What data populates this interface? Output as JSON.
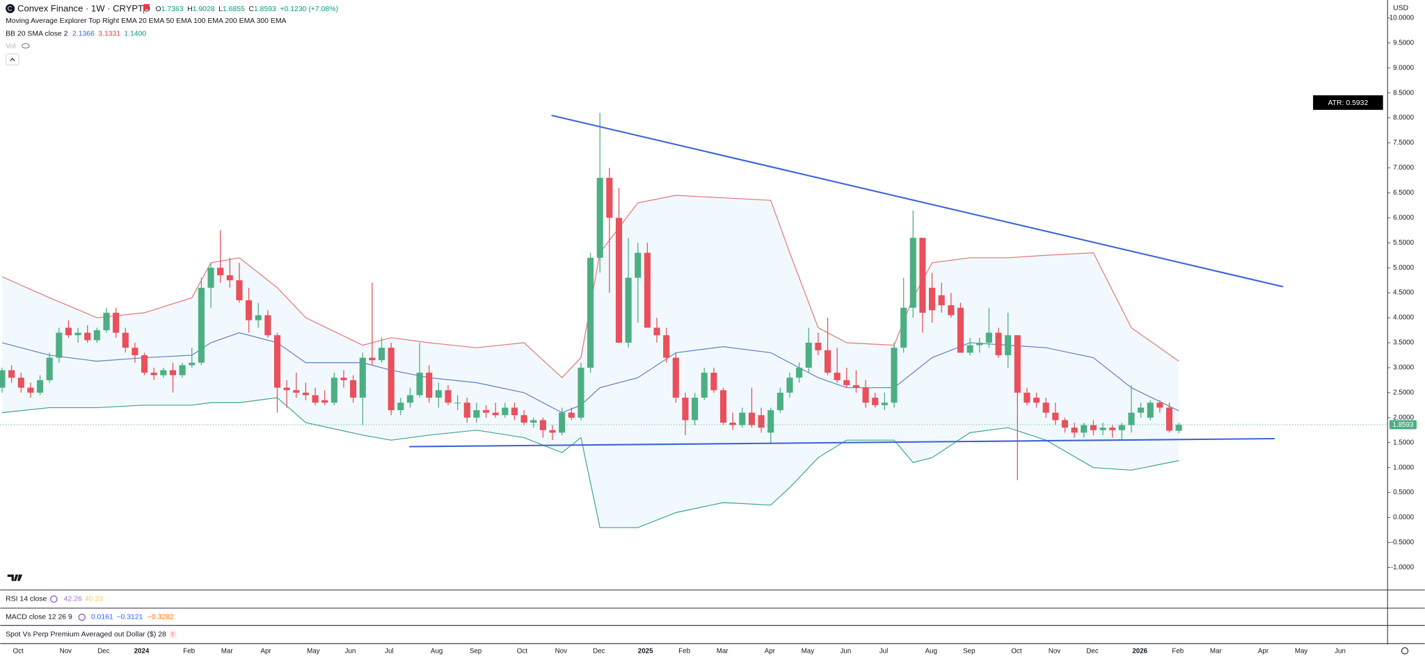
{
  "header": {
    "symbol": "Convex Finance · 1W · CRYPTO",
    "ohlc": [
      {
        "key": "O",
        "value": "1.7363"
      },
      {
        "key": "H",
        "value": "1.9028"
      },
      {
        "key": "L",
        "value": "1.6855"
      },
      {
        "key": "C",
        "value": "1.8593"
      }
    ],
    "change": "+0.1230 (+7.08%)",
    "ma_indicator": "Moving Average Explorer Top Right EMA 20 EMA 50 EMA 100 EMA 200 EMA 300 EMA",
    "bb_indicator": "BB 20 SMA close 2",
    "bb_values": [
      "2.1366",
      "3.1331",
      "1.1400"
    ],
    "vol": "Vol",
    "currency": "USD"
  },
  "panes": {
    "rsi": {
      "label": "RSI 14 close",
      "values": [
        "42.26",
        "40.33"
      ]
    },
    "macd": {
      "label": "MACD close 12 26 9",
      "values": [
        "0.0161",
        "−0.3121",
        "−0.3282"
      ]
    },
    "spot": {
      "label": "Spot Vs Perp Premium Averaged out Dollar ($) 28"
    }
  },
  "chart_data": {
    "type": "candlestick",
    "up_color": "#4caf83",
    "down_color": "#e8505b",
    "candles": {
      "open": [
        2.6,
        2.95,
        2.8,
        2.6,
        2.5,
        2.75,
        3.2,
        3.8,
        3.65,
        3.7,
        3.55,
        3.75,
        4.1,
        3.7,
        3.4,
        3.25,
        2.9,
        2.85,
        2.95,
        2.85,
        3.05,
        3.1,
        4.6,
        5.0,
        4.85,
        4.75,
        4.35,
        3.95,
        4.05,
        3.65,
        2.6,
        2.55,
        2.5,
        2.45,
        2.35,
        2.3,
        2.8,
        2.75,
        2.4,
        3.2,
        3.15,
        3.4,
        2.15,
        2.3,
        2.45,
        2.9,
        2.4,
        2.55,
        2.3,
        2.3,
        2.0,
        2.15,
        2.1,
        2.05,
        2.2,
        2.05,
        1.9,
        1.95,
        1.75,
        1.7,
        2.1,
        2.0,
        3.0,
        5.2,
        6.8,
        6.0,
        3.5,
        4.8,
        5.3,
        3.8,
        3.65,
        3.2,
        2.4,
        1.95,
        2.4,
        2.9,
        2.55,
        1.9,
        1.85,
        2.1,
        2.05,
        1.7,
        2.15,
        2.5,
        2.8,
        3.0,
        3.5,
        3.35,
        2.9,
        2.75,
        2.65,
        2.6,
        2.4,
        2.25,
        2.3,
        3.4,
        4.2,
        5.6,
        4.6,
        4.45,
        4.25,
        4.2,
        3.3,
        3.45,
        3.5,
        3.7,
        3.25,
        3.65,
        2.5,
        2.4,
        2.3,
        2.1,
        1.95,
        1.8,
        1.7,
        1.85,
        1.75,
        1.8,
        1.75,
        1.85,
        2.1,
        2.0,
        2.3,
        2.2,
        1.7363
      ],
      "high": [
        3.0,
        3.05,
        2.9,
        2.7,
        2.85,
        3.3,
        3.8,
        3.95,
        3.8,
        3.85,
        3.8,
        4.2,
        4.2,
        3.8,
        3.5,
        3.3,
        3.0,
        3.0,
        3.1,
        3.1,
        3.4,
        4.8,
        5.1,
        5.75,
        5.2,
        5.1,
        4.6,
        4.3,
        4.15,
        3.7,
        2.75,
        2.9,
        2.7,
        2.6,
        2.55,
        2.9,
        2.95,
        2.85,
        3.3,
        4.7,
        3.6,
        3.5,
        2.4,
        2.6,
        3.5,
        3.05,
        2.7,
        2.65,
        2.45,
        2.4,
        2.3,
        2.25,
        2.3,
        2.3,
        2.3,
        2.15,
        2.0,
        2.0,
        1.85,
        2.2,
        2.2,
        3.1,
        5.3,
        8.1,
        7.0,
        6.6,
        5.6,
        5.5,
        5.5,
        4.0,
        3.8,
        3.3,
        2.5,
        2.5,
        3.0,
        3.0,
        2.6,
        2.1,
        2.2,
        2.6,
        2.2,
        2.2,
        2.6,
        2.9,
        3.1,
        3.8,
        3.7,
        4.0,
        3.4,
        3.0,
        2.95,
        2.75,
        2.5,
        2.5,
        3.5,
        4.8,
        6.15,
        5.6,
        4.9,
        4.7,
        4.5,
        4.3,
        3.6,
        3.6,
        4.2,
        3.8,
        4.1,
        3.65,
        2.6,
        2.5,
        2.4,
        2.3,
        2.0,
        1.9,
        1.9,
        1.95,
        1.9,
        1.85,
        1.9,
        2.65,
        2.3,
        2.35,
        2.35,
        2.3,
        1.9028
      ],
      "low": [
        2.5,
        2.7,
        2.5,
        2.4,
        2.45,
        2.7,
        3.1,
        3.6,
        3.5,
        3.5,
        3.5,
        3.7,
        3.6,
        3.3,
        3.1,
        2.85,
        2.75,
        2.8,
        2.5,
        2.8,
        3.0,
        3.05,
        4.2,
        4.7,
        4.6,
        4.3,
        3.7,
        3.8,
        3.6,
        2.1,
        2.2,
        2.4,
        2.35,
        2.25,
        2.25,
        2.25,
        2.6,
        2.3,
        1.85,
        3.05,
        3.1,
        2.05,
        2.05,
        2.2,
        2.4,
        2.3,
        2.2,
        2.25,
        2.15,
        1.9,
        1.9,
        2.0,
        2.0,
        2.0,
        1.95,
        1.85,
        1.8,
        1.6,
        1.55,
        1.65,
        1.95,
        1.95,
        2.9,
        4.9,
        4.5,
        3.5,
        3.4,
        3.9,
        3.8,
        3.5,
        3.1,
        2.3,
        1.65,
        1.85,
        2.35,
        2.5,
        1.85,
        1.75,
        1.8,
        1.8,
        1.7,
        1.5,
        2.1,
        2.4,
        2.7,
        2.9,
        3.25,
        2.85,
        2.7,
        2.6,
        2.5,
        2.2,
        2.2,
        2.15,
        2.2,
        3.3,
        4.0,
        3.7,
        3.9,
        4.1,
        4.0,
        3.3,
        3.25,
        3.3,
        3.4,
        3.2,
        3.0,
        0.75,
        2.25,
        2.2,
        2.0,
        1.85,
        1.7,
        1.6,
        1.6,
        1.65,
        1.65,
        1.6,
        1.55,
        1.7,
        2.0,
        1.95,
        2.1,
        1.7,
        1.6855
      ],
      "close": [
        2.95,
        2.8,
        2.6,
        2.5,
        2.75,
        3.2,
        3.7,
        3.65,
        3.7,
        3.55,
        3.75,
        4.1,
        3.7,
        3.4,
        3.25,
        2.9,
        2.85,
        2.95,
        2.85,
        3.05,
        3.1,
        4.6,
        5.0,
        4.85,
        4.75,
        4.35,
        3.95,
        4.05,
        3.65,
        2.6,
        2.55,
        2.5,
        2.45,
        2.3,
        2.3,
        2.8,
        2.75,
        2.4,
        3.2,
        3.15,
        3.4,
        2.15,
        2.3,
        2.45,
        2.9,
        2.4,
        2.55,
        2.3,
        2.3,
        2.0,
        2.15,
        2.1,
        2.05,
        2.2,
        2.05,
        1.9,
        1.95,
        1.75,
        1.7,
        2.1,
        2.0,
        3.0,
        5.2,
        6.8,
        6.0,
        3.5,
        4.8,
        5.3,
        3.8,
        3.65,
        3.2,
        2.4,
        1.95,
        2.4,
        2.9,
        2.55,
        1.9,
        1.85,
        2.1,
        1.85,
        1.8,
        2.15,
        2.5,
        2.8,
        3.0,
        3.5,
        3.35,
        2.9,
        2.75,
        2.65,
        2.6,
        2.3,
        2.25,
        2.3,
        3.4,
        4.2,
        5.6,
        4.1,
        4.15,
        4.25,
        4.05,
        3.3,
        3.45,
        3.5,
        3.7,
        3.25,
        3.65,
        2.5,
        2.3,
        2.3,
        2.1,
        1.95,
        1.8,
        1.7,
        1.85,
        1.75,
        1.8,
        1.75,
        1.85,
        2.1,
        2.2,
        2.3,
        2.2,
        1.74,
        1.8593
      ]
    },
    "bands": {
      "x": [
        0,
        5,
        10,
        15,
        20,
        22,
        25,
        29,
        32,
        38,
        41,
        45,
        50,
        55,
        59,
        61,
        63,
        67,
        71,
        76,
        81,
        83,
        86,
        89,
        94,
        96,
        98,
        102,
        106,
        110,
        115,
        119,
        124
      ],
      "upper": {
        "color": "#e57373",
        "values": [
          4.82,
          4.4,
          4.0,
          4.1,
          4.4,
          5.1,
          5.2,
          4.6,
          4.0,
          3.45,
          3.6,
          3.5,
          3.4,
          3.5,
          2.8,
          3.2,
          5.3,
          6.3,
          6.45,
          6.4,
          6.35,
          5.3,
          3.8,
          3.5,
          3.45,
          4.4,
          5.1,
          5.2,
          5.2,
          5.25,
          5.3,
          3.8,
          3.13
        ]
      },
      "basis": {
        "color": "#5b7fbf",
        "values": [
          3.5,
          3.25,
          3.13,
          3.2,
          3.25,
          3.5,
          3.7,
          3.5,
          3.1,
          3.1,
          2.95,
          2.8,
          2.7,
          2.5,
          2.1,
          2.25,
          2.6,
          2.8,
          3.3,
          3.42,
          3.3,
          3.1,
          2.8,
          2.6,
          2.6,
          2.9,
          3.2,
          3.5,
          3.45,
          3.4,
          3.2,
          2.6,
          2.1366
        ]
      },
      "lower": {
        "color": "#3aa38a",
        "values": [
          2.1,
          2.2,
          2.2,
          2.25,
          2.25,
          2.3,
          2.3,
          2.4,
          1.9,
          1.65,
          1.55,
          1.65,
          1.75,
          1.6,
          1.3,
          1.6,
          -0.2,
          -0.2,
          0.1,
          0.3,
          0.25,
          0.6,
          1.2,
          1.55,
          1.55,
          1.1,
          1.2,
          1.7,
          1.8,
          1.55,
          1.0,
          0.95,
          1.14
        ]
      },
      "fill": "#2196f3"
    },
    "trendlines": [
      {
        "x": [
          57.9,
          135.0
        ],
        "values": [
          8.05,
          4.62
        ],
        "color": "#3b63d6"
      },
      {
        "x": [
          42.9,
          134.1
        ],
        "values": [
          1.42,
          1.58
        ],
        "color": "#3b63d6"
      }
    ],
    "last_price": 1.8593,
    "annotation": "ATR: 0.5932",
    "xlim": [
      -0.2,
      146
    ],
    "ylim": [
      -1.45,
      10.36
    ],
    "xticks": [
      {
        "value": 1.7,
        "label": "Oct"
      },
      {
        "value": 6.7,
        "label": "Nov"
      },
      {
        "value": 10.7,
        "label": "Dec"
      },
      {
        "value": 14.7,
        "label": "2024"
      },
      {
        "value": 19.7,
        "label": "Feb"
      },
      {
        "value": 23.7,
        "label": "Mar"
      },
      {
        "value": 27.8,
        "label": "Apr"
      },
      {
        "value": 32.8,
        "label": "May"
      },
      {
        "value": 36.7,
        "label": "Jun"
      },
      {
        "value": 40.8,
        "label": "Jul"
      },
      {
        "value": 45.8,
        "label": "Aug"
      },
      {
        "value": 49.9,
        "label": "Sep"
      },
      {
        "value": 54.8,
        "label": "Oct"
      },
      {
        "value": 58.9,
        "label": "Nov"
      },
      {
        "value": 62.9,
        "label": "Dec"
      },
      {
        "value": 67.8,
        "label": "2025"
      },
      {
        "value": 71.9,
        "label": "Feb"
      },
      {
        "value": 75.9,
        "label": "Mar"
      },
      {
        "value": 80.9,
        "label": "Apr"
      },
      {
        "value": 84.9,
        "label": "May"
      },
      {
        "value": 88.9,
        "label": "Jun"
      },
      {
        "value": 92.9,
        "label": "Jul"
      },
      {
        "value": 97.9,
        "label": "Aug"
      },
      {
        "value": 101.9,
        "label": "Sep"
      },
      {
        "value": 106.9,
        "label": "Oct"
      },
      {
        "value": 110.9,
        "label": "Nov"
      },
      {
        "value": 114.9,
        "label": "Dec"
      },
      {
        "value": 119.9,
        "label": "2026"
      },
      {
        "value": 123.9,
        "label": "Feb"
      },
      {
        "value": 127.9,
        "label": "Mar"
      },
      {
        "value": 132.9,
        "label": "Apr"
      },
      {
        "value": 136.9,
        "label": "May"
      },
      {
        "value": 141.0,
        "label": "Jun"
      }
    ],
    "yticks": [
      {
        "value": 10,
        "label": "10.0000"
      },
      {
        "value": 9.5,
        "label": "9.5000"
      },
      {
        "value": 9,
        "label": "9.0000"
      },
      {
        "value": 8.5,
        "label": "8.5000"
      },
      {
        "value": 8,
        "label": "8.0000"
      },
      {
        "value": 7.5,
        "label": "7.5000"
      },
      {
        "value": 7,
        "label": "7.0000"
      },
      {
        "value": 6.5,
        "label": "6.5000"
      },
      {
        "value": 6,
        "label": "6.0000"
      },
      {
        "value": 5.5,
        "label": "5.5000"
      },
      {
        "value": 5,
        "label": "5.0000"
      },
      {
        "value": 4.5,
        "label": "4.5000"
      },
      {
        "value": 4,
        "label": "4.0000"
      },
      {
        "value": 3.5,
        "label": "3.5000"
      },
      {
        "value": 3,
        "label": "3.0000"
      },
      {
        "value": 2.5,
        "label": "2.5000"
      },
      {
        "value": 2,
        "label": "2.0000"
      },
      {
        "value": 1.5,
        "label": "1.5000"
      },
      {
        "value": 1,
        "label": "1.0000"
      },
      {
        "value": 0.5,
        "label": "0.5000"
      },
      {
        "value": 0,
        "label": "0.0000"
      },
      {
        "value": -0.5,
        "label": "-0.5000"
      },
      {
        "value": -1,
        "label": "-1.0000"
      }
    ]
  }
}
